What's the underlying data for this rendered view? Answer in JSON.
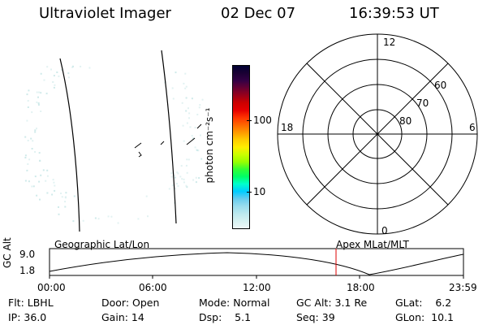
{
  "header": {
    "title": "Ultraviolet Imager",
    "date": "02 Dec 07",
    "time": "16:39:53 UT"
  },
  "colorbar": {
    "label": "photon cm⁻²s⁻¹",
    "ticks": [
      "100",
      "10"
    ],
    "colors": [
      "#000033",
      "#1a0033",
      "#330044",
      "#660033",
      "#99001a",
      "#cc0000",
      "#e60000",
      "#ff3300",
      "#ff6600",
      "#ff9900",
      "#ffcc00",
      "#ffee00",
      "#ccff00",
      "#99ff00",
      "#33ff33",
      "#00ff66",
      "#00ffcc",
      "#00ccff",
      "#66ccee",
      "#99ddee",
      "#bbe8ee",
      "#d6f1f1",
      "#eef8f8"
    ]
  },
  "polar": {
    "labels": {
      "top": "12",
      "bottom": "0",
      "left": "18",
      "right": "6",
      "lat60": "60",
      "lat70": "70",
      "lat80": "80"
    }
  },
  "timeline": {
    "left_label": "Geographic Lat/Lon",
    "right_label": "Apex MLat/MLT",
    "axis_title": "GC Alt",
    "y_hi": "9.0",
    "y_lo": "1.8",
    "x_ticks": [
      "00:00",
      "06:00",
      "12:00",
      "18:00",
      "23:59"
    ],
    "marker_color": "#dd0000"
  },
  "footer": {
    "flt": "Flt: LBHL",
    "ip": "IP: 36.0",
    "door": "Door: Open",
    "gain": "Gain: 14",
    "mode": "Mode: Normal",
    "dsp": "Dsp:    5.1",
    "gcalt": "GC Alt: 3.1 Re",
    "seq": "Seq: 39",
    "glat": "GLat:    6.2",
    "glon": "GLon:  10.1"
  }
}
